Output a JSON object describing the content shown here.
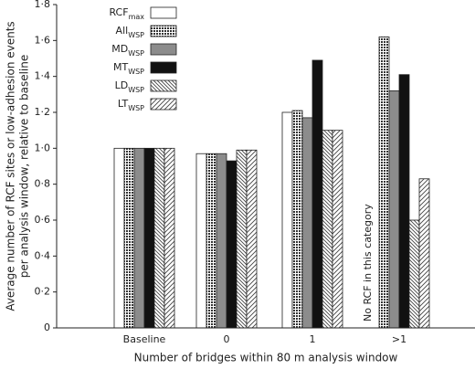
{
  "chart_data": {
    "type": "bar",
    "xlabel": "Number of bridges within 80 m analysis window",
    "ylabel": [
      "Average number of RCF sites or low-adhesion events",
      "per analysis window, relative to baseline"
    ],
    "annotation": "No RCF in this category",
    "categories": [
      "Baseline",
      "0",
      "1",
      ">1"
    ],
    "series": [
      {
        "name": "RCF",
        "subscript": "max",
        "color": "#ffffff",
        "pattern": "solid",
        "values": [
          1.0,
          0.97,
          1.2,
          null
        ]
      },
      {
        "name": "All",
        "subscript": "WSP",
        "color": "#555555",
        "pattern": "crosshatch",
        "values": [
          1.0,
          0.97,
          1.21,
          1.62
        ]
      },
      {
        "name": "MD",
        "subscript": "WSP",
        "color": "#8c8c8c",
        "pattern": "solid",
        "values": [
          1.0,
          0.97,
          1.17,
          1.32
        ]
      },
      {
        "name": "MT",
        "subscript": "WSP",
        "color": "#111111",
        "pattern": "solid",
        "values": [
          1.0,
          0.93,
          1.49,
          1.41
        ]
      },
      {
        "name": "LD",
        "subscript": "WSP",
        "color": "#666666",
        "pattern": "backslash",
        "values": [
          1.0,
          0.99,
          1.1,
          0.6
        ]
      },
      {
        "name": "LT",
        "subscript": "WSP",
        "color": "#666666",
        "pattern": "slash",
        "values": [
          1.0,
          0.99,
          1.1,
          0.83
        ]
      }
    ],
    "ylim": [
      0,
      1.8
    ],
    "yticks": [
      0,
      {
        "value": 0.2,
        "label": "0·2"
      },
      {
        "value": 0.4,
        "label": "0·4"
      },
      {
        "value": 0.6,
        "label": "0·6"
      },
      {
        "value": 0.8,
        "label": "0·8"
      },
      {
        "value": 1.0,
        "label": "1·0"
      },
      {
        "value": 1.2,
        "label": "1·2"
      },
      {
        "value": 1.4,
        "label": "1·4"
      },
      {
        "value": 1.6,
        "label": "1·6"
      },
      {
        "value": 1.8,
        "label": "1·8"
      }
    ],
    "legend": "upper-left"
  }
}
